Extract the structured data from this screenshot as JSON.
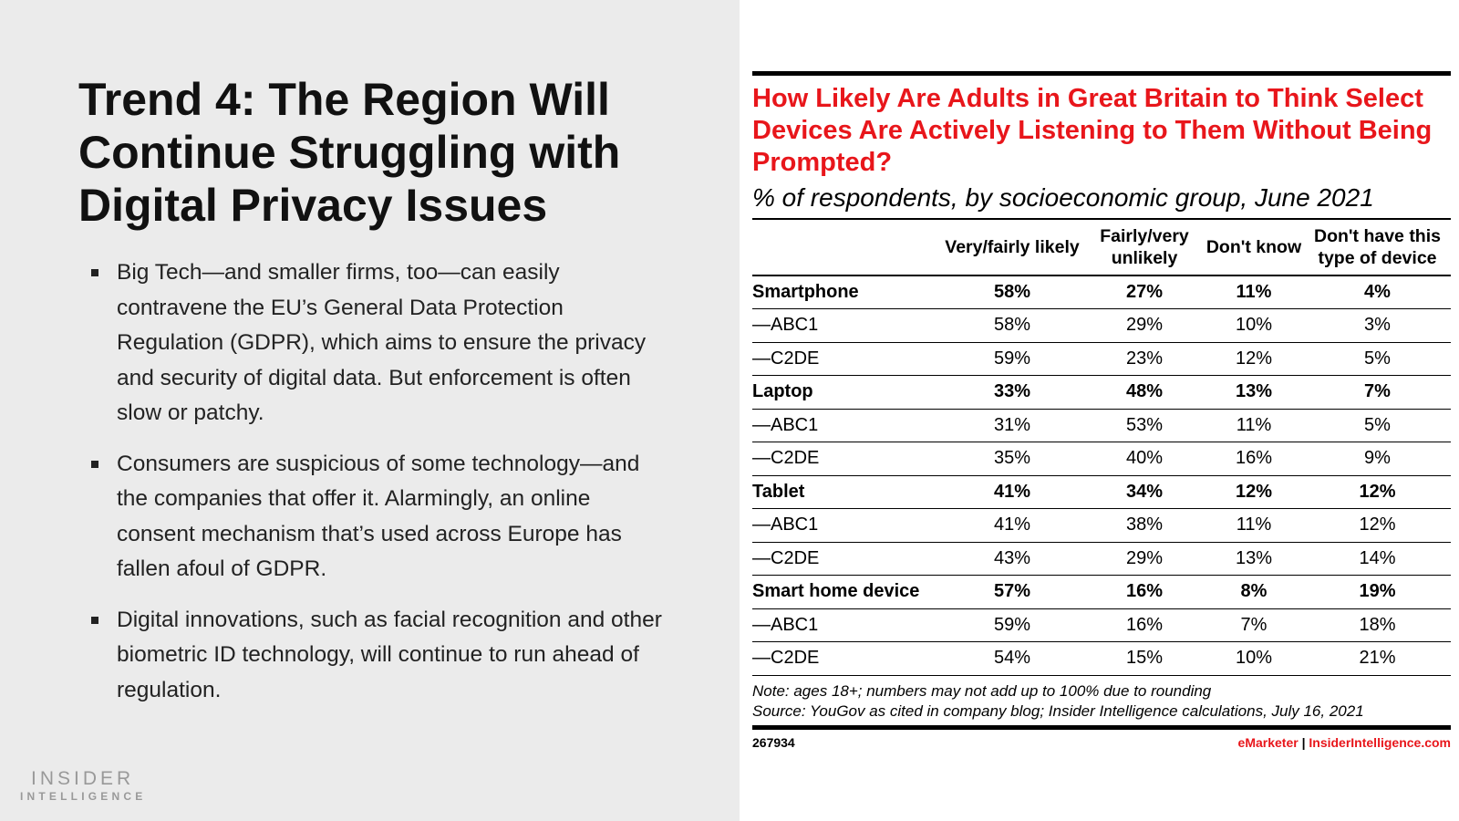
{
  "slide": {
    "title": "Trend 4: The Region Will Continue Struggling with Digital Privacy Issues",
    "bullets": [
      "Big Tech—and smaller firms, too—can easily contravene the EU’s General Data Protection Regulation (GDPR), which aims to ensure the privacy and security of digital data. But enforcement is often slow or patchy.",
      "Consumers are suspicious of some technology—and the companies that offer it. Alarmingly, an online consent mechanism that’s used across Europe has fallen afoul of GDPR.",
      "Digital innovations, such as facial recognition and other biometric ID technology, will continue to run ahead of regulation."
    ],
    "logo": {
      "line1": "INSIDER",
      "line2": "INTELLIGENCE"
    }
  },
  "chart": {
    "title": "How Likely Are Adults in Great Britain to Think Select Devices Are Actively Listening to Them Without Being Prompted?",
    "subtitle": "% of respondents, by socioeconomic group, June 2021",
    "note": "Note: ages 18+; numbers may not add up to 100% due to rounding",
    "source": "Source: YouGov as cited in company blog; Insider Intelligence calculations, July 16, 2021",
    "id": "267934",
    "brand": "eMarketer",
    "separator": "|",
    "site": "InsiderIntelligence.com",
    "accent": "#e8161b"
  },
  "chart_data": {
    "type": "table",
    "columns": [
      "",
      "Very/fairly likely",
      "Fairly/very unlikely",
      "Don't know",
      "Don't have this type of device"
    ],
    "rows": [
      {
        "label": "Smartphone",
        "bold": true,
        "values": [
          "58%",
          "27%",
          "11%",
          "4%"
        ]
      },
      {
        "label": "—ABC1",
        "values": [
          "58%",
          "29%",
          "10%",
          "3%"
        ]
      },
      {
        "label": "—C2DE",
        "values": [
          "59%",
          "23%",
          "12%",
          "5%"
        ]
      },
      {
        "label": "Laptop",
        "bold": true,
        "values": [
          "33%",
          "48%",
          "13%",
          "7%"
        ]
      },
      {
        "label": "—ABC1",
        "values": [
          "31%",
          "53%",
          "11%",
          "5%"
        ]
      },
      {
        "label": "—C2DE",
        "values": [
          "35%",
          "40%",
          "16%",
          "9%"
        ]
      },
      {
        "label": "Tablet",
        "bold": true,
        "values": [
          "41%",
          "34%",
          "12%",
          "12%"
        ]
      },
      {
        "label": "—ABC1",
        "values": [
          "41%",
          "38%",
          "11%",
          "12%"
        ]
      },
      {
        "label": "—C2DE",
        "values": [
          "43%",
          "29%",
          "13%",
          "14%"
        ]
      },
      {
        "label": "Smart home device",
        "bold": true,
        "values": [
          "57%",
          "16%",
          "8%",
          "19%"
        ]
      },
      {
        "label": "—ABC1",
        "values": [
          "59%",
          "16%",
          "7%",
          "18%"
        ]
      },
      {
        "label": "—C2DE",
        "values": [
          "54%",
          "15%",
          "10%",
          "21%"
        ]
      }
    ]
  }
}
